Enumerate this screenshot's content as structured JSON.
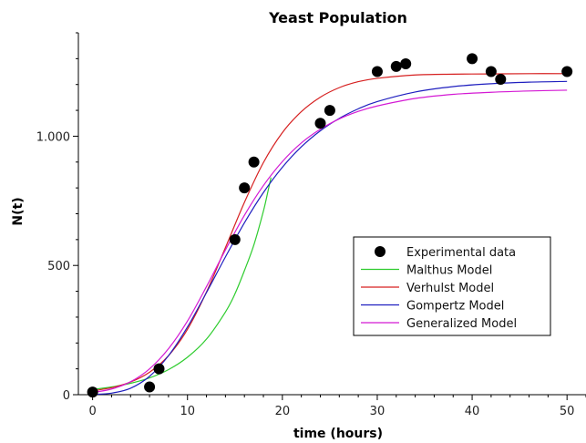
{
  "chart_data": {
    "type": "line",
    "title": "Yeast Population",
    "xlabel": "time (hours)",
    "ylabel": "N(t)",
    "xlim": [
      -1.5,
      52
    ],
    "ylim": [
      0,
      1400
    ],
    "x_ticks": [
      0,
      10,
      20,
      30,
      40,
      50
    ],
    "x_tick_labels": [
      "0",
      "10",
      "20",
      "30",
      "40",
      "50"
    ],
    "y_ticks": [
      0,
      500,
      1000
    ],
    "y_tick_labels": [
      "0",
      "500",
      "1.000"
    ],
    "y_minor_step": 100,
    "x_minor_step": 2,
    "grid": false,
    "legend_position": "lower-right",
    "scatter": {
      "name": "Experimental data",
      "color": "#000000",
      "points": [
        [
          0,
          10
        ],
        [
          6,
          30
        ],
        [
          7,
          100
        ],
        [
          15,
          600
        ],
        [
          16,
          800
        ],
        [
          17,
          900
        ],
        [
          24,
          1050
        ],
        [
          25,
          1100
        ],
        [
          30,
          1250
        ],
        [
          32,
          1270
        ],
        [
          33,
          1280
        ],
        [
          40,
          1300
        ],
        [
          42,
          1250
        ],
        [
          43,
          1220
        ],
        [
          50,
          1250
        ]
      ]
    },
    "series": [
      {
        "name": "Malthus Model",
        "color": "#2ecc2e",
        "x": [
          0,
          2,
          4,
          6,
          8,
          10,
          12,
          14,
          15,
          16,
          17,
          18,
          18.5,
          18.8
        ],
        "values": [
          20,
          30,
          44,
          65,
          97,
          145,
          215,
          320,
          390,
          480,
          580,
          710,
          790,
          840
        ]
      },
      {
        "name": "Verhulst Model",
        "color": "#d62020",
        "x": [
          0,
          2,
          4,
          6,
          8,
          10,
          12,
          14,
          16,
          18,
          20,
          22,
          24,
          26,
          28,
          30,
          34,
          38,
          42,
          46,
          50
        ],
        "values": [
          15,
          27,
          49,
          87,
          151,
          253,
          397,
          569,
          744,
          898,
          1014,
          1095,
          1151,
          1188,
          1211,
          1224,
          1237,
          1240,
          1241,
          1242,
          1242
        ]
      },
      {
        "name": "Gompertz Model",
        "color": "#1f1fbf",
        "x": [
          0,
          2,
          4,
          6,
          8,
          10,
          12,
          14,
          16,
          18,
          20,
          22,
          24,
          26,
          28,
          30,
          34,
          38,
          42,
          46,
          50
        ],
        "values": [
          1,
          6,
          25,
          71,
          151,
          262,
          395,
          533,
          665,
          782,
          880,
          959,
          1021,
          1069,
          1106,
          1134,
          1171,
          1192,
          1203,
          1209,
          1212
        ]
      },
      {
        "name": "Generalized Model",
        "color": "#d419d4",
        "x": [
          0,
          2,
          4,
          6,
          8,
          10,
          12,
          14,
          16,
          18,
          20,
          22,
          24,
          26,
          28,
          30,
          34,
          38,
          42,
          46,
          50
        ],
        "values": [
          8,
          22,
          50,
          100,
          178,
          285,
          418,
          560,
          694,
          809,
          902,
          974,
          1027,
          1067,
          1096,
          1117,
          1146,
          1162,
          1170,
          1175,
          1178
        ]
      }
    ]
  }
}
